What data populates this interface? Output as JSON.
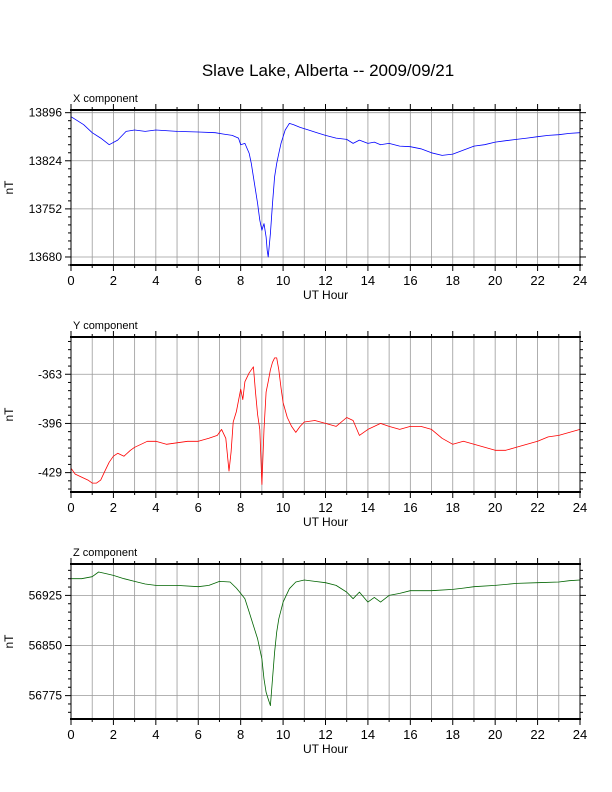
{
  "title": "Slave Lake, Alberta -- 2009/09/21",
  "chart_data": [
    {
      "type": "line",
      "panel_label": "X component",
      "xlabel": "UT Hour",
      "ylabel": "nT",
      "xlim": [
        0,
        24
      ],
      "ylim": [
        13668,
        13900
      ],
      "xticks": [
        0,
        2,
        4,
        6,
        8,
        10,
        12,
        14,
        16,
        18,
        20,
        22,
        24
      ],
      "yticks": [
        13680,
        13752,
        13824,
        13896
      ],
      "grid": true,
      "color": "#0000ff",
      "x": [
        0,
        0.3,
        0.6,
        1.0,
        1.4,
        1.8,
        2.2,
        2.6,
        3.0,
        3.5,
        4.0,
        5.0,
        6.0,
        6.8,
        7.2,
        7.6,
        7.9,
        8.0,
        8.2,
        8.4,
        8.5,
        8.6,
        8.7,
        8.8,
        8.9,
        9.0,
        9.1,
        9.2,
        9.25,
        9.3,
        9.4,
        9.5,
        9.6,
        9.7,
        9.8,
        9.9,
        10.0,
        10.1,
        10.2,
        10.3,
        10.5,
        10.8,
        11.2,
        11.6,
        12.0,
        12.5,
        13.0,
        13.3,
        13.6,
        14.0,
        14.3,
        14.6,
        15.0,
        15.5,
        16.0,
        16.5,
        17.0,
        17.5,
        18.0,
        18.5,
        19.0,
        19.5,
        20.0,
        20.5,
        21.0,
        21.5,
        22.0,
        22.5,
        23.0,
        23.5,
        24.0
      ],
      "values": [
        13890,
        13884,
        13878,
        13866,
        13858,
        13848,
        13855,
        13868,
        13870,
        13868,
        13870,
        13868,
        13867,
        13866,
        13864,
        13862,
        13858,
        13848,
        13850,
        13835,
        13820,
        13800,
        13780,
        13760,
        13735,
        13720,
        13730,
        13710,
        13690,
        13680,
        13715,
        13760,
        13800,
        13820,
        13835,
        13850,
        13860,
        13870,
        13875,
        13880,
        13878,
        13874,
        13870,
        13866,
        13862,
        13858,
        13856,
        13850,
        13855,
        13850,
        13852,
        13848,
        13850,
        13846,
        13845,
        13842,
        13836,
        13832,
        13834,
        13840,
        13846,
        13848,
        13852,
        13854,
        13856,
        13858,
        13860,
        13862,
        13863,
        13865,
        13866
      ]
    },
    {
      "type": "line",
      "panel_label": "Y component",
      "xlabel": "UT Hour",
      "ylabel": "nT",
      "xlim": [
        0,
        24
      ],
      "ylim": [
        -442,
        -338
      ],
      "xticks": [
        0,
        2,
        4,
        6,
        8,
        10,
        12,
        14,
        16,
        18,
        20,
        22,
        24
      ],
      "yticks": [
        -429,
        -396,
        -363
      ],
      "grid": true,
      "color": "#ff0000",
      "x": [
        0,
        0.2,
        0.5,
        0.8,
        1.0,
        1.2,
        1.4,
        1.6,
        1.8,
        2.0,
        2.2,
        2.5,
        2.8,
        3.0,
        3.3,
        3.6,
        4.0,
        4.5,
        5.0,
        5.5,
        6.0,
        6.5,
        6.9,
        7.1,
        7.3,
        7.45,
        7.55,
        7.65,
        7.8,
        8.0,
        8.1,
        8.2,
        8.4,
        8.6,
        8.7,
        8.8,
        8.9,
        9.0,
        9.1,
        9.2,
        9.3,
        9.4,
        9.5,
        9.6,
        9.7,
        9.8,
        9.9,
        10.0,
        10.2,
        10.4,
        10.6,
        10.8,
        11.0,
        11.5,
        12.0,
        12.5,
        13.0,
        13.3,
        13.6,
        14.0,
        14.3,
        14.6,
        15.0,
        15.5,
        16.0,
        16.5,
        17.0,
        17.5,
        18.0,
        18.5,
        19.0,
        19.5,
        20.0,
        20.5,
        21.0,
        21.5,
        22.0,
        22.5,
        23.0,
        23.5,
        24.0
      ],
      "values": [
        -426,
        -430,
        -432,
        -434,
        -436,
        -436,
        -434,
        -428,
        -422,
        -418,
        -416,
        -418,
        -414,
        -412,
        -410,
        -408,
        -408,
        -410,
        -409,
        -408,
        -408,
        -406,
        -404,
        -400,
        -406,
        -428,
        -415,
        -395,
        -388,
        -373,
        -380,
        -368,
        -362,
        -358,
        -375,
        -390,
        -400,
        -437,
        -400,
        -375,
        -368,
        -360,
        -355,
        -352,
        -352,
        -360,
        -372,
        -382,
        -392,
        -398,
        -402,
        -398,
        -395,
        -394,
        -396,
        -398,
        -392,
        -394,
        -404,
        -400,
        -398,
        -396,
        -398,
        -400,
        -398,
        -398,
        -400,
        -406,
        -410,
        -408,
        -410,
        -412,
        -414,
        -414,
        -412,
        -410,
        -408,
        -405,
        -404,
        -402,
        -400
      ]
    },
    {
      "type": "line",
      "panel_label": "Z component",
      "xlabel": "UT Hour",
      "ylabel": "nT",
      "xlim": [
        0,
        24
      ],
      "ylim": [
        56740,
        56972
      ],
      "xticks": [
        0,
        2,
        4,
        6,
        8,
        10,
        12,
        14,
        16,
        18,
        20,
        22,
        24
      ],
      "yticks": [
        56775,
        56850,
        56925
      ],
      "grid": true,
      "color": "#006400",
      "x": [
        0,
        0.5,
        1.0,
        1.3,
        1.6,
        2.0,
        2.5,
        3.0,
        3.5,
        4.0,
        5.0,
        6.0,
        6.5,
        7.0,
        7.5,
        7.8,
        8.0,
        8.2,
        8.4,
        8.6,
        8.8,
        9.0,
        9.1,
        9.2,
        9.3,
        9.4,
        9.5,
        9.6,
        9.7,
        9.8,
        10.0,
        10.3,
        10.6,
        11.0,
        11.5,
        12.0,
        12.5,
        13.0,
        13.3,
        13.6,
        14.0,
        14.3,
        14.6,
        15.0,
        15.5,
        16.0,
        17.0,
        18.0,
        18.5,
        19.0,
        20.0,
        21.0,
        22.0,
        23.0,
        23.5,
        24.0
      ],
      "values": [
        56950,
        56950,
        56953,
        56960,
        56958,
        56955,
        56950,
        56946,
        56942,
        56940,
        56940,
        56938,
        56940,
        56946,
        56945,
        56936,
        56928,
        56920,
        56900,
        56880,
        56860,
        56830,
        56800,
        56780,
        56770,
        56760,
        56800,
        56840,
        56870,
        56890,
        56915,
        56935,
        56945,
        56948,
        56946,
        56944,
        56940,
        56930,
        56920,
        56930,
        56915,
        56922,
        56915,
        56925,
        56928,
        56932,
        56932,
        56934,
        56936,
        56938,
        56940,
        56943,
        56944,
        56945,
        56947,
        56948
      ]
    }
  ]
}
